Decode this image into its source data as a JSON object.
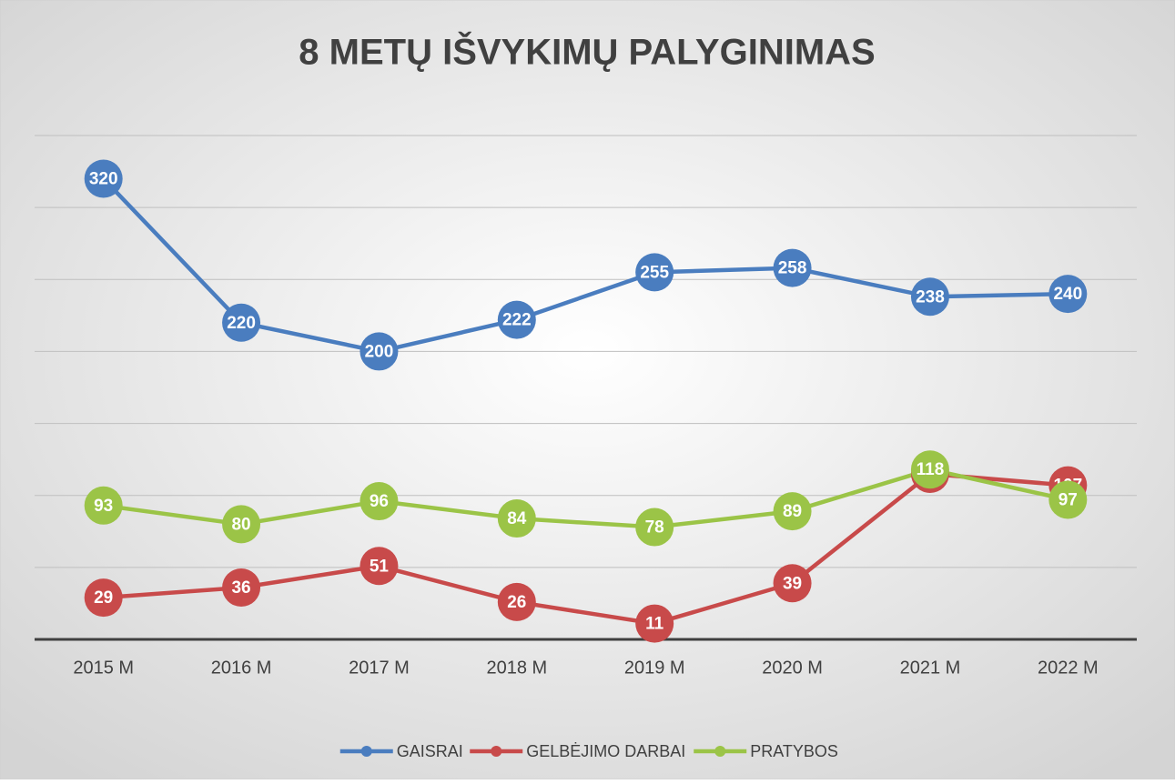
{
  "chart_data": {
    "type": "line",
    "title": "8 METŲ IŠVYKIMŲ PALYGINIMAS",
    "categories": [
      "2015 M",
      "2016 M",
      "2017 M",
      "2018 M",
      "2019 M",
      "2020 M",
      "2021 M",
      "2022 M"
    ],
    "series": [
      {
        "name": "GAISRAI",
        "color": "#4a7dbf",
        "values": [
          320,
          220,
          200,
          222,
          255,
          258,
          238,
          240
        ]
      },
      {
        "name": "GELBĖJIMO DARBAI",
        "color": "#c84a4a",
        "values": [
          29,
          36,
          51,
          26,
          11,
          39,
          115,
          107
        ]
      },
      {
        "name": "PRATYBOS",
        "color": "#9bc447",
        "values": [
          93,
          80,
          96,
          84,
          78,
          89,
          118,
          97
        ]
      }
    ],
    "ylim": [
      0,
      350
    ],
    "yticks": [
      0,
      50,
      100,
      150,
      200,
      250,
      300,
      350
    ],
    "grid": true,
    "legend": "bottom"
  }
}
